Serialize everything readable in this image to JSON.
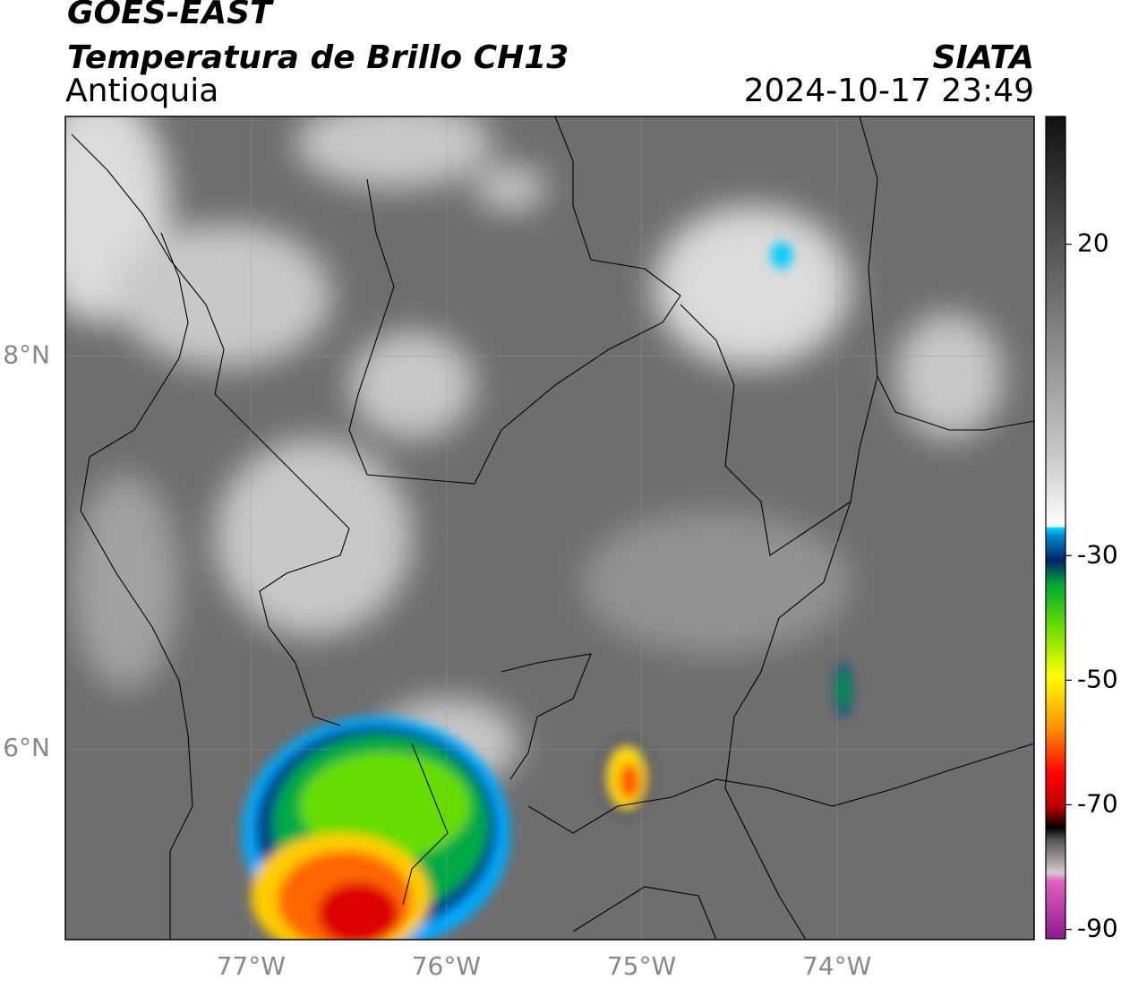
{
  "header": {
    "title": "GOES-EAST",
    "subtitle": "Temperatura de Brillo CH13",
    "region": "Antioquia",
    "source": "SIATA",
    "datetime": "2024-10-17 23:49"
  },
  "map": {
    "xlim": [
      -77.95,
      -72.99
    ],
    "ylim": [
      5.03,
      9.22
    ],
    "xticks": [
      {
        "value": -77,
        "label": "77°W"
      },
      {
        "value": -76,
        "label": "76°W"
      },
      {
        "value": -75,
        "label": "75°W"
      },
      {
        "value": -74,
        "label": "74°W"
      }
    ],
    "yticks": [
      {
        "value": 6,
        "label": "6°N"
      },
      {
        "value": 8,
        "label": "8°N"
      }
    ]
  },
  "colorbar": {
    "lim": [
      -91.5,
      40.5
    ],
    "ticks": [
      20,
      -30,
      -50,
      -70,
      -90
    ]
  }
}
